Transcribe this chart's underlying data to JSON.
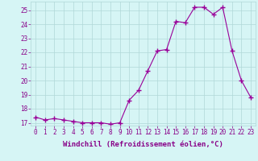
{
  "x": [
    0,
    1,
    2,
    3,
    4,
    5,
    6,
    7,
    8,
    9,
    10,
    11,
    12,
    13,
    14,
    15,
    16,
    17,
    18,
    19,
    20,
    21,
    22,
    23
  ],
  "y": [
    17.4,
    17.2,
    17.3,
    17.2,
    17.1,
    17.0,
    17.0,
    17.0,
    16.9,
    17.0,
    18.6,
    19.3,
    20.7,
    22.1,
    22.2,
    24.2,
    24.1,
    25.2,
    25.2,
    24.7,
    25.2,
    22.1,
    20.0,
    18.8
  ],
  "line_color": "#990099",
  "marker": "+",
  "marker_size": 4,
  "xlabel": "Windchill (Refroidissement éolien,°C)",
  "xlim": [
    -0.5,
    23.5
  ],
  "ylim": [
    16.8,
    25.6
  ],
  "yticks": [
    17,
    18,
    19,
    20,
    21,
    22,
    23,
    24,
    25
  ],
  "xticks": [
    0,
    1,
    2,
    3,
    4,
    5,
    6,
    7,
    8,
    9,
    10,
    11,
    12,
    13,
    14,
    15,
    16,
    17,
    18,
    19,
    20,
    21,
    22,
    23
  ],
  "bg_color": "#d6f5f5",
  "grid_color": "#b0d8d8",
  "font_color": "#880088",
  "tick_font_size": 5.5,
  "xlabel_font_size": 6.5
}
